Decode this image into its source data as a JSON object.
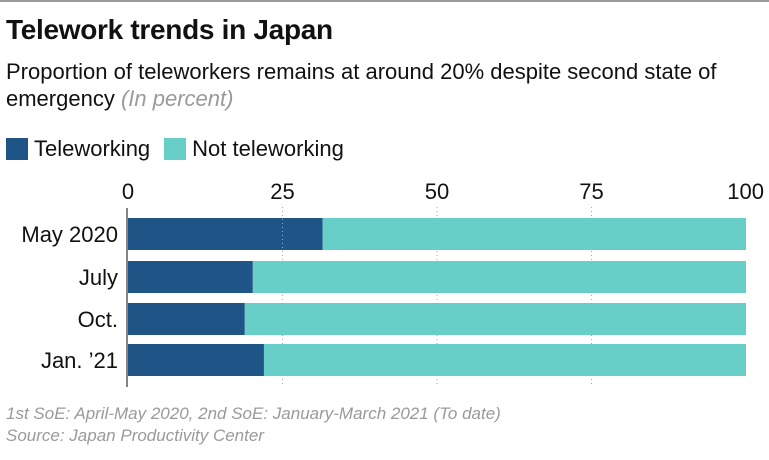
{
  "chart_data": {
    "type": "bar",
    "orientation": "horizontal",
    "stacked": true,
    "title": "Telework trends in Japan",
    "subtitle": "Proportion of teleworkers remains at around 20% despite second state of emergency",
    "unit_label": "(In percent)",
    "categories": [
      "May 2020",
      "July",
      "Oct.",
      "Jan. ’21"
    ],
    "series": [
      {
        "name": "Teleworking",
        "color": "#1f5486",
        "values": [
          31.5,
          20.2,
          18.9,
          22.0
        ]
      },
      {
        "name": "Not teleworking",
        "color": "#67cec8",
        "values": [
          68.5,
          79.8,
          81.1,
          78.0
        ]
      }
    ],
    "xlim": [
      0,
      100
    ],
    "xticks": [
      0,
      25,
      50,
      75,
      100
    ],
    "grid": true,
    "legend": "top-left",
    "notes": [
      "1st SoE: April-May 2020, 2nd SoE: January-March 2021 (To date)",
      "Source: Japan Productivity Center"
    ]
  }
}
